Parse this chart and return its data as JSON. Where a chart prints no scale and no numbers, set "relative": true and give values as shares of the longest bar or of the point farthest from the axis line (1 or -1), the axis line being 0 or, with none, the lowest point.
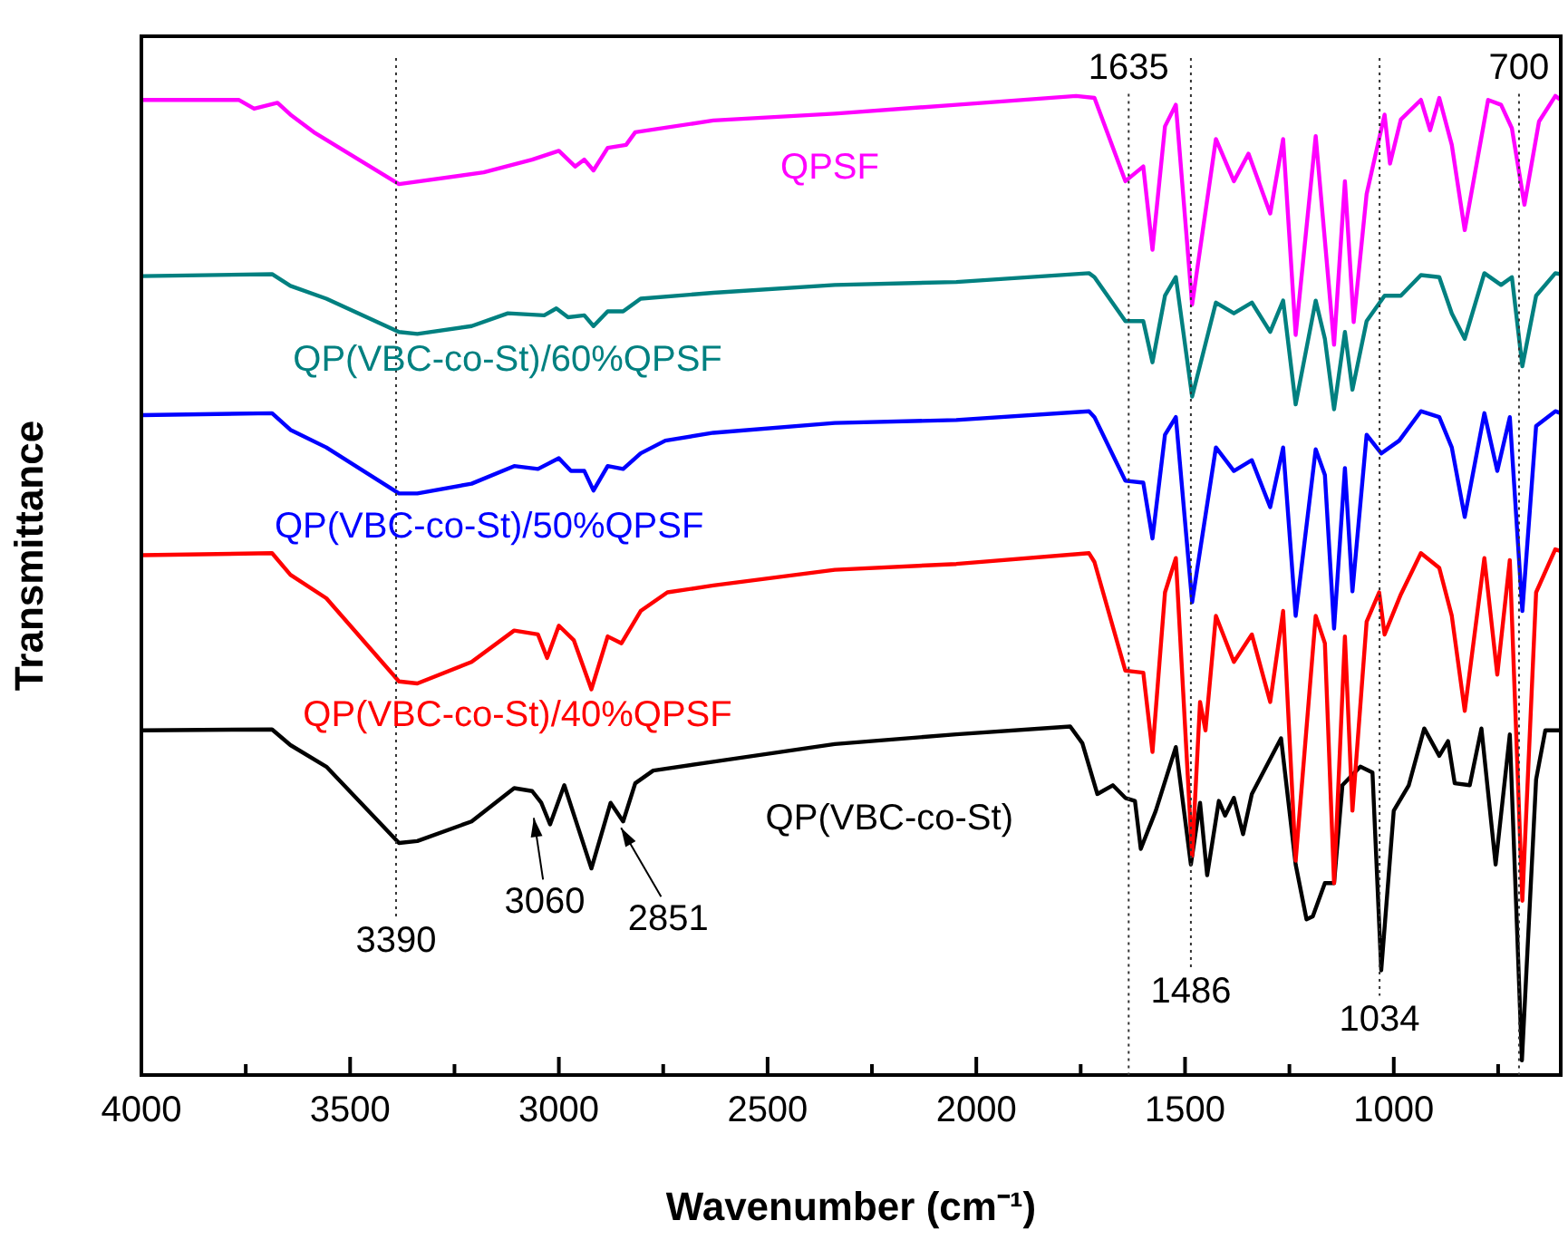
{
  "chart_data": {
    "type": "line",
    "xlabel": "Wavenumber (cm⁻¹)",
    "ylabel": "Transmittance",
    "relative": true,
    "xlim": [
      4000,
      600
    ],
    "xticks": [
      4000,
      {
        "value": 3750,
        "label": null
      },
      3500,
      {
        "value": 3250,
        "label": null
      },
      3000,
      {
        "value": 2750,
        "label": null
      },
      2500,
      {
        "value": 2250,
        "label": null
      },
      2000,
      {
        "value": 1750,
        "label": null
      },
      1500,
      {
        "value": 1250,
        "label": null
      },
      1000,
      {
        "value": 750,
        "label": null
      }
    ],
    "series": [
      {
        "name": "QPSF",
        "color": "#ff00ff",
        "x": [
          4000,
          3767,
          3730,
          3674,
          3643,
          3587,
          3383,
          3180,
          3064,
          3000,
          2961,
          2939,
          2917,
          2883,
          2839,
          2817,
          2630,
          2339,
          2048,
          1761,
          1717,
          1643,
          1600,
          1578,
          1548,
          1522,
          1483,
          1426,
          1383,
          1348,
          1296,
          1265,
          1235,
          1187,
          1143,
          1117,
          1096,
          1065,
          1022,
          1009,
          983,
          935,
          913,
          891,
          861,
          830,
          774,
          743,
          717,
          687,
          652,
          613,
          600
        ],
        "values": [
          0.996,
          0.996,
          0.987,
          0.993,
          0.981,
          0.963,
          0.91,
          0.922,
          0.935,
          0.944,
          0.928,
          0.935,
          0.924,
          0.947,
          0.95,
          0.963,
          0.975,
          0.982,
          0.991,
          1,
          0.998,
          0.913,
          0.928,
          0.843,
          0.969,
          0.991,
          0.787,
          0.956,
          0.913,
          0.941,
          0.88,
          0.956,
          0.756,
          0.959,
          0.746,
          0.913,
          0.769,
          0.9,
          0.981,
          0.931,
          0.976,
          0.996,
          0.965,
          0.998,
          0.95,
          0.863,
          0.996,
          0.991,
          0.967,
          0.889,
          0.974,
          1,
          0.996
        ]
      },
      {
        "name": "QP(VBC-co-St)/60%QPSF",
        "color": "#008080",
        "x": [
          4000,
          3687,
          3643,
          3557,
          3383,
          3339,
          3209,
          3122,
          3035,
          3006,
          2978,
          2939,
          2917,
          2883,
          2846,
          2804,
          2630,
          2339,
          2048,
          1730,
          1717,
          1643,
          1600,
          1578,
          1548,
          1522,
          1483,
          1426,
          1383,
          1340,
          1296,
          1265,
          1235,
          1187,
          1165,
          1143,
          1117,
          1099,
          1065,
          1022,
          983,
          935,
          891,
          861,
          830,
          783,
          743,
          717,
          692,
          659,
          613,
          600
        ],
        "values": [
          0.816,
          0.818,
          0.806,
          0.793,
          0.759,
          0.757,
          0.765,
          0.778,
          0.776,
          0.783,
          0.774,
          0.776,
          0.765,
          0.78,
          0.78,
          0.793,
          0.799,
          0.807,
          0.81,
          0.819,
          0.815,
          0.77,
          0.77,
          0.728,
          0.796,
          0.815,
          0.693,
          0.789,
          0.778,
          0.789,
          0.759,
          0.791,
          0.685,
          0.791,
          0.752,
          0.68,
          0.759,
          0.7,
          0.77,
          0.796,
          0.796,
          0.817,
          0.815,
          0.778,
          0.752,
          0.819,
          0.807,
          0.815,
          0.724,
          0.796,
          0.819,
          0.818
        ]
      },
      {
        "name": "QP(VBC-co-St)/50%QPSF",
        "color": "#0000ff",
        "x": [
          4000,
          3687,
          3643,
          3557,
          3383,
          3339,
          3209,
          3107,
          3050,
          3000,
          2971,
          2939,
          2917,
          2883,
          2846,
          2804,
          2745,
          2630,
          2339,
          2048,
          1730,
          1717,
          1643,
          1600,
          1578,
          1548,
          1522,
          1483,
          1426,
          1383,
          1340,
          1296,
          1265,
          1235,
          1187,
          1165,
          1143,
          1117,
          1099,
          1065,
          1030,
          987,
          935,
          891,
          861,
          830,
          783,
          752,
          722,
          692,
          659,
          613,
          600
        ],
        "values": [
          0.674,
          0.676,
          0.659,
          0.641,
          0.594,
          0.594,
          0.604,
          0.622,
          0.619,
          0.63,
          0.617,
          0.617,
          0.597,
          0.622,
          0.619,
          0.635,
          0.648,
          0.656,
          0.666,
          0.669,
          0.678,
          0.672,
          0.607,
          0.605,
          0.548,
          0.654,
          0.672,
          0.483,
          0.641,
          0.617,
          0.628,
          0.58,
          0.641,
          0.469,
          0.639,
          0.613,
          0.456,
          0.62,
          0.494,
          0.654,
          0.635,
          0.648,
          0.678,
          0.672,
          0.641,
          0.57,
          0.676,
          0.617,
          0.672,
          0.474,
          0.663,
          0.678,
          0.676
        ]
      },
      {
        "name": "QP(VBC-co-St)/40%QPSF",
        "color": "#ff0000",
        "x": [
          4000,
          3687,
          3643,
          3557,
          3383,
          3339,
          3209,
          3107,
          3050,
          3028,
          3000,
          2964,
          2922,
          2883,
          2850,
          2804,
          2740,
          2630,
          2339,
          2048,
          1730,
          1717,
          1643,
          1600,
          1578,
          1548,
          1522,
          1483,
          1464,
          1451,
          1426,
          1383,
          1340,
          1296,
          1265,
          1235,
          1187,
          1165,
          1143,
          1117,
          1099,
          1065,
          1035,
          1022,
          983,
          935,
          891,
          861,
          830,
          783,
          752,
          722,
          692,
          659,
          613,
          600
        ],
        "values": [
          0.531,
          0.533,
          0.511,
          0.487,
          0.402,
          0.4,
          0.422,
          0.454,
          0.45,
          0.426,
          0.459,
          0.444,
          0.394,
          0.448,
          0.441,
          0.474,
          0.493,
          0.5,
          0.516,
          0.522,
          0.533,
          0.524,
          0.413,
          0.411,
          0.33,
          0.493,
          0.528,
          0.224,
          0.381,
          0.352,
          0.469,
          0.422,
          0.45,
          0.381,
          0.474,
          0.219,
          0.469,
          0.441,
          0.196,
          0.448,
          0.27,
          0.463,
          0.493,
          0.45,
          0.491,
          0.533,
          0.518,
          0.469,
          0.372,
          0.528,
          0.409,
          0.526,
          0.178,
          0.493,
          0.537,
          0.535
        ]
      },
      {
        "name": "QP(VBC-co-St)",
        "color": "#000000",
        "x": [
          4000,
          3687,
          3643,
          3557,
          3383,
          3339,
          3209,
          3107,
          3064,
          3042,
          3021,
          2987,
          2922,
          2876,
          2846,
          2817,
          2774,
          2630,
          2339,
          2048,
          1775,
          1746,
          1710,
          1673,
          1643,
          1620,
          1606,
          1570,
          1522,
          1486,
          1464,
          1447,
          1419,
          1404,
          1383,
          1361,
          1340,
          1270,
          1235,
          1209,
          1194,
          1165,
          1143,
          1123,
          1080,
          1051,
          1030,
          1000,
          964,
          927,
          891,
          870,
          854,
          818,
          790,
          756,
          722,
          693,
          659,
          637,
          600
        ],
        "values": [
          0.352,
          0.353,
          0.337,
          0.315,
          0.237,
          0.239,
          0.259,
          0.293,
          0.29,
          0.278,
          0.256,
          0.296,
          0.211,
          0.278,
          0.259,
          0.298,
          0.311,
          0.32,
          0.338,
          0.348,
          0.356,
          0.339,
          0.287,
          0.296,
          0.283,
          0.28,
          0.231,
          0.27,
          0.335,
          0.215,
          0.278,
          0.204,
          0.28,
          0.265,
          0.283,
          0.246,
          0.287,
          0.344,
          0.215,
          0.159,
          0.162,
          0.196,
          0.196,
          0.296,
          0.315,
          0.309,
          0.107,
          0.27,
          0.296,
          0.354,
          0.326,
          0.341,
          0.298,
          0.296,
          0.354,
          0.215,
          0.348,
          0.015,
          0.302,
          0.352,
          0.352
        ]
      }
    ],
    "ref_lines": [
      {
        "axis": "x",
        "value": 3390,
        "label": "3390",
        "line_style": "dotted"
      },
      {
        "axis": "x",
        "value": 1635,
        "label": "1635",
        "line_style": "dotted"
      },
      {
        "axis": "x",
        "value": 1486,
        "label": "1486",
        "line_style": "dotted"
      },
      {
        "axis": "x",
        "value": 1034,
        "label": "1034",
        "line_style": "dotted"
      },
      {
        "axis": "x",
        "value": 700,
        "label": "700",
        "line_style": "dotted"
      }
    ],
    "annotations": [
      {
        "text": "3060",
        "x": 3060,
        "y": 0.27
      },
      {
        "text": "2851",
        "x": 2851,
        "y": 0.26
      }
    ]
  }
}
